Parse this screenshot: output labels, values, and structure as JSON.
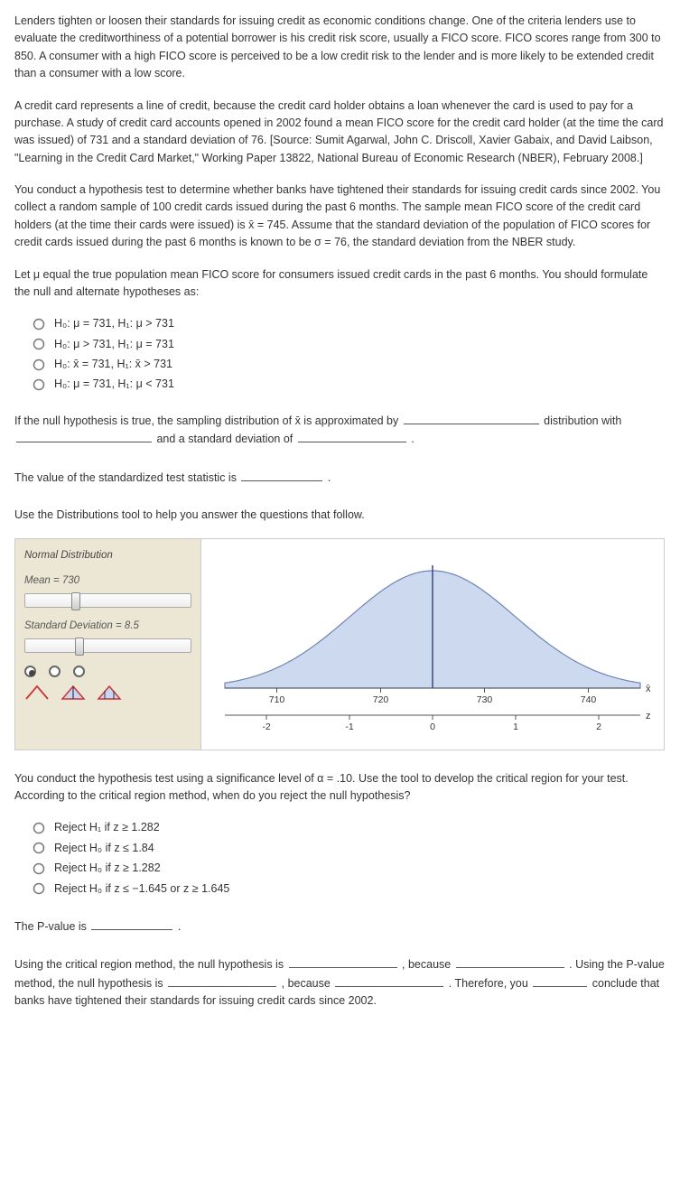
{
  "paragraphs": {
    "p1": "Lenders tighten or loosen their standards for issuing credit as economic conditions change. One of the criteria lenders use to evaluate the creditworthiness of a potential borrower is his credit risk score, usually a FICO score. FICO scores range from 300 to 850. A consumer with a high FICO score is perceived to be a low credit risk to the lender and is more likely to be extended credit than a consumer with a low score.",
    "p2": "A credit card represents a line of credit, because the credit card holder obtains a loan whenever the card is used to pay for a purchase. A study of credit card accounts opened in 2002 found a mean FICO score for the credit card holder (at the time the card was issued) of 731 and a standard deviation of 76. [Source: Sumit Agarwal, John C. Driscoll, Xavier Gabaix, and David Laibson, \"Learning in the Credit Card Market,\" Working Paper 13822, National Bureau of Economic Research (NBER), February 2008.]",
    "p3": "You conduct a hypothesis test to determine whether banks have tightened their standards for issuing credit cards since 2002. You collect a random sample of 100 credit cards issued during the past 6 months. The sample mean FICO score of the credit card holders (at the time their cards were issued) is x̄ = 745. Assume that the standard deviation of the population of FICO scores for credit cards issued during the past 6 months is known to be σ = 76, the standard deviation from the NBER study.",
    "p4": "Let μ equal the true population mean FICO score for consumers issued credit cards in the past 6 months. You should formulate the null and alternate hypotheses as:",
    "p6": "Use the Distributions tool to help you answer the questions that follow.",
    "p7": "You conduct the hypothesis test using a significance level of α = .10. Use the tool to develop the critical region for your test. According to the critical region method, when do you reject the null hypothesis?"
  },
  "fill": {
    "sentence1_a": "If the null hypothesis is true, the sampling distribution of x̄ is approximated by ",
    "sentence1_b": " distribution with ",
    "sentence1_c": " and a standard deviation of ",
    "sentence1_d": " .",
    "sentence2_a": "The value of the standardized test statistic is ",
    "sentence2_b": " .",
    "pval_a": "The P-value is ",
    "pval_b": " .",
    "conc_a": "Using the critical region method, the null hypothesis is ",
    "conc_b": " , because ",
    "conc_c": " . Using the P-value method, the null hypothesis is ",
    "conc_d": " , because ",
    "conc_e": " . Therefore, you ",
    "conc_f": " conclude that banks have tightened their standards for issuing credit cards since 2002."
  },
  "q1_options": [
    "H₀: μ = 731, H₁: μ > 731",
    "H₀: μ > 731, H₁: μ = 731",
    "H₀: x̄ = 731, H₁: x̄ > 731",
    "H₀: μ = 731, H₁: μ < 731"
  ],
  "q2_options": [
    "Reject H₁ if z ≥ 1.282",
    "Reject H₀ if z ≤ 1.84",
    "Reject H₀ if z ≥ 1.282",
    "Reject H₀ if z ≤ −1.645 or z ≥ 1.645"
  ],
  "tool": {
    "title": "Normal Distribution",
    "mean_label": "Mean = 730",
    "sd_label": "Standard Deviation = 8.5",
    "slider_mean_pos_pct": 28,
    "slider_sd_pos_pct": 30,
    "curve": {
      "fill": "#cdd9ef",
      "stroke": "#6f85b7",
      "center_line": "#3a4a78"
    },
    "x_axis": {
      "ticks": [
        "710",
        "720",
        "730",
        "740"
      ],
      "end_label": "x̄"
    },
    "z_axis": {
      "ticks": [
        "-2",
        "-1",
        "0",
        "1",
        "2"
      ],
      "end_label": "z"
    }
  }
}
